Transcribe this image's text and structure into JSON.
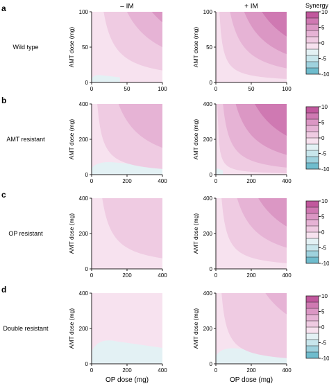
{
  "column_titles": [
    "– IM",
    "+ IM"
  ],
  "x_axis_label": "OP dose (mg)",
  "y_axis_label": "AMT dose (mg)",
  "colorbar": {
    "title": "Synergy",
    "ticks": [
      "10",
      "5",
      "0",
      "-5",
      "-10"
    ],
    "band_colors": [
      "#c1589d",
      "#cf79b2",
      "#db97c4",
      "#e6b3d5",
      "#efcbe2",
      "#f7e2ef",
      "#e3f1f4",
      "#c8e6ec",
      "#9fd2de",
      "#6fbccd"
    ]
  },
  "chart_data": [
    {
      "type": "heatmap",
      "panel": "a",
      "row_label": "Wild type",
      "x_ticks": [
        "0",
        "50",
        "100"
      ],
      "y_ticks": [
        "0",
        "50",
        "100"
      ],
      "xlim": [
        0,
        100
      ],
      "ylim": [
        0,
        100
      ],
      "xlabel": "",
      "ylabel": "AMT dose (mg)",
      "subplots": [
        {
          "column": "– IM",
          "contours": [
            {
              "synergy": 2,
              "k": 0.17
            },
            {
              "synergy": 4,
              "k": 0.5
            },
            {
              "synergy": 6,
              "k": 0.85
            }
          ],
          "antagonism": [
            {
              "synergy": -1,
              "x_max": 40,
              "y_max": 12
            }
          ]
        },
        {
          "column": "+ IM",
          "contours": [
            {
              "synergy": 2,
              "k": 0.05
            },
            {
              "synergy": 4,
              "k": 0.2
            },
            {
              "synergy": 6,
              "k": 0.4
            },
            {
              "synergy": 8,
              "k": 0.65
            }
          ],
          "antagonism": []
        }
      ]
    },
    {
      "type": "heatmap",
      "panel": "b",
      "row_label": "AMT resistant",
      "x_ticks": [
        "0",
        "200",
        "400"
      ],
      "y_ticks": [
        "0",
        "200",
        "400"
      ],
      "xlim": [
        0,
        400
      ],
      "ylim": [
        0,
        400
      ],
      "xlabel": "",
      "ylabel": "AMT dose (mg)",
      "subplots": [
        {
          "column": "– IM",
          "contours": [
            {
              "synergy": 2,
              "k": 0.08
            },
            {
              "synergy": 4,
              "k": 0.38
            }
          ],
          "antagonism": [
            {
              "synergy": -1,
              "x_max": 400,
              "y_max": 80
            }
          ]
        },
        {
          "column": "+ IM",
          "contours": [
            {
              "synergy": 2,
              "k": 0.02
            },
            {
              "synergy": 4,
              "k": 0.1
            },
            {
              "synergy": 6,
              "k": 0.28
            },
            {
              "synergy": 8,
              "k": 0.55
            }
          ],
          "antagonism": [
            {
              "synergy": -1,
              "x_max": 40,
              "y_max": 40
            }
          ]
        }
      ]
    },
    {
      "type": "heatmap",
      "panel": "c",
      "row_label": "OP resistant",
      "x_ticks": [
        "0",
        "200",
        "400"
      ],
      "y_ticks": [
        "0",
        "200",
        "400"
      ],
      "xlim": [
        0,
        400
      ],
      "ylim": [
        0,
        400
      ],
      "xlabel": "",
      "ylabel": "AMT dose (mg)",
      "subplots": [
        {
          "column": "– IM",
          "contours": [
            {
              "synergy": 2,
              "k": 0.15
            }
          ],
          "antagonism": []
        },
        {
          "column": "+ IM",
          "contours": [
            {
              "synergy": 2,
              "k": 0.08
            },
            {
              "synergy": 4,
              "k": 0.3
            },
            {
              "synergy": 6,
              "k": 0.6
            }
          ],
          "antagonism": []
        }
      ]
    },
    {
      "type": "heatmap",
      "panel": "d",
      "row_label": "Double resistant",
      "x_ticks": [
        "0",
        "200",
        "400"
      ],
      "y_ticks": [
        "0",
        "200",
        "400"
      ],
      "xlim": [
        0,
        400
      ],
      "ylim": [
        0,
        400
      ],
      "xlabel": "OP dose (mg)",
      "ylabel": "AMT dose (mg)",
      "subplots": [
        {
          "column": "– IM",
          "contours": [],
          "antagonism": [
            {
              "synergy": -1,
              "x_max": 400,
              "y_max": 150
            }
          ]
        },
        {
          "column": "+ IM",
          "contours": [
            {
              "synergy": 2,
              "k": 0.08
            },
            {
              "synergy": 4,
              "k": 0.7
            }
          ],
          "antagonism": [
            {
              "synergy": -1,
              "x_max": 400,
              "y_max": 100
            }
          ]
        }
      ]
    }
  ]
}
